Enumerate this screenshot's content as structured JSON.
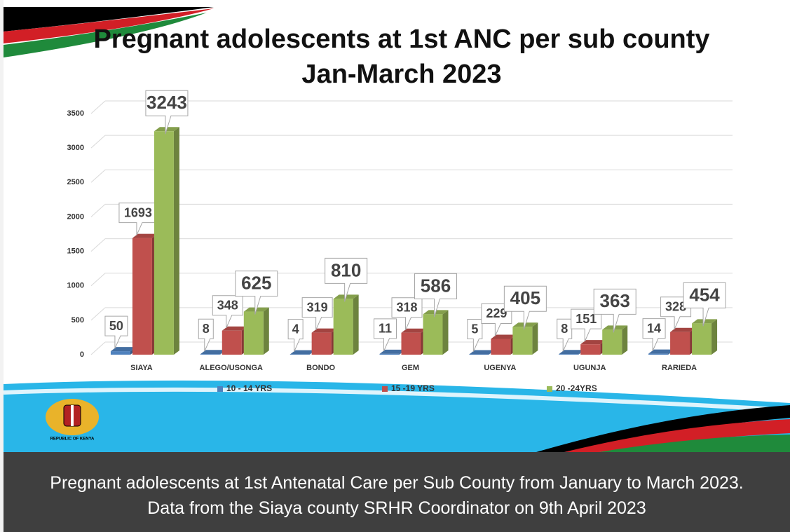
{
  "chart_data": {
    "type": "bar",
    "title": "Pregnant adolescents at 1st ANC per sub county",
    "subtitle": "Jan-March 2023",
    "categories": [
      "SIAYA",
      "ALEGO/USONGA",
      "BONDO",
      "GEM",
      "UGENYA",
      "UGUNJA",
      "RARIEDA"
    ],
    "series": [
      {
        "name": "10 - 14 YRS",
        "color": "#4f81bd",
        "values": [
          50,
          8,
          4,
          11,
          5,
          8,
          14
        ]
      },
      {
        "name": "15 -19 YRS",
        "color": "#c0504d",
        "values": [
          1693,
          348,
          319,
          318,
          229,
          151,
          328
        ]
      },
      {
        "name": "20 -24YRS",
        "color": "#9bbb59",
        "values": [
          3243,
          625,
          810,
          586,
          405,
          363,
          454
        ]
      }
    ],
    "ylim": [
      0,
      3500
    ],
    "yticks": [
      0,
      500,
      1000,
      1500,
      2000,
      2500,
      3000,
      3500
    ],
    "grid": true,
    "legend": "bottom"
  },
  "emblem_text": "REPUBLIC OF KENYA",
  "caption": "Pregnant adolescents at 1st Antenatal Care per Sub County from January to March 2023. Data from the Siaya county SRHR Coordinator on 9th April 2023"
}
